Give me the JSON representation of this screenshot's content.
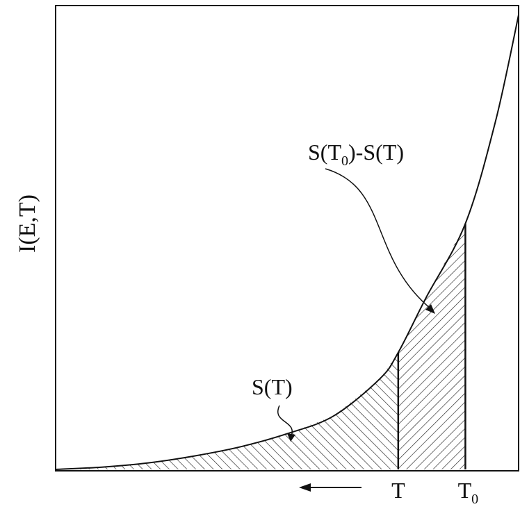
{
  "chart_data": {
    "type": "area",
    "title": "",
    "xlabel": "",
    "ylabel": "I(E,T)",
    "x_ticks": [
      {
        "label": "T",
        "sub": "",
        "x": 0.74
      },
      {
        "label": "T",
        "sub": "0",
        "x": 0.885
      }
    ],
    "xlim": [
      0,
      1
    ],
    "ylim": [
      0,
      1
    ],
    "curve": {
      "description": "monotonically increasing exponential-like curve",
      "points": [
        [
          0.0,
          0.0
        ],
        [
          0.1,
          0.005
        ],
        [
          0.2,
          0.014
        ],
        [
          0.3,
          0.029
        ],
        [
          0.4,
          0.049
        ],
        [
          0.5,
          0.077
        ],
        [
          0.6,
          0.115
        ],
        [
          0.7,
          0.195
        ],
        [
          0.74,
          0.252
        ],
        [
          0.8,
          0.37
        ],
        [
          0.885,
          0.53
        ],
        [
          0.95,
          0.75
        ],
        [
          1.0,
          0.98
        ]
      ]
    },
    "regions": [
      {
        "label": "S(T)",
        "from": 0.0,
        "to": 0.74,
        "hatch": "backslash"
      },
      {
        "label": "S(T0)-S(T)",
        "from": 0.74,
        "to": 0.885,
        "hatch": "slash"
      }
    ],
    "annotations": [
      {
        "text": "S(T)",
        "target": "region-S"
      },
      {
        "text": "S(T",
        "sub": "0",
        "tail": ")-S(T)",
        "target": "region-diff"
      }
    ],
    "arrow": {
      "direction": "left"
    },
    "grid": false,
    "legend": "none"
  }
}
